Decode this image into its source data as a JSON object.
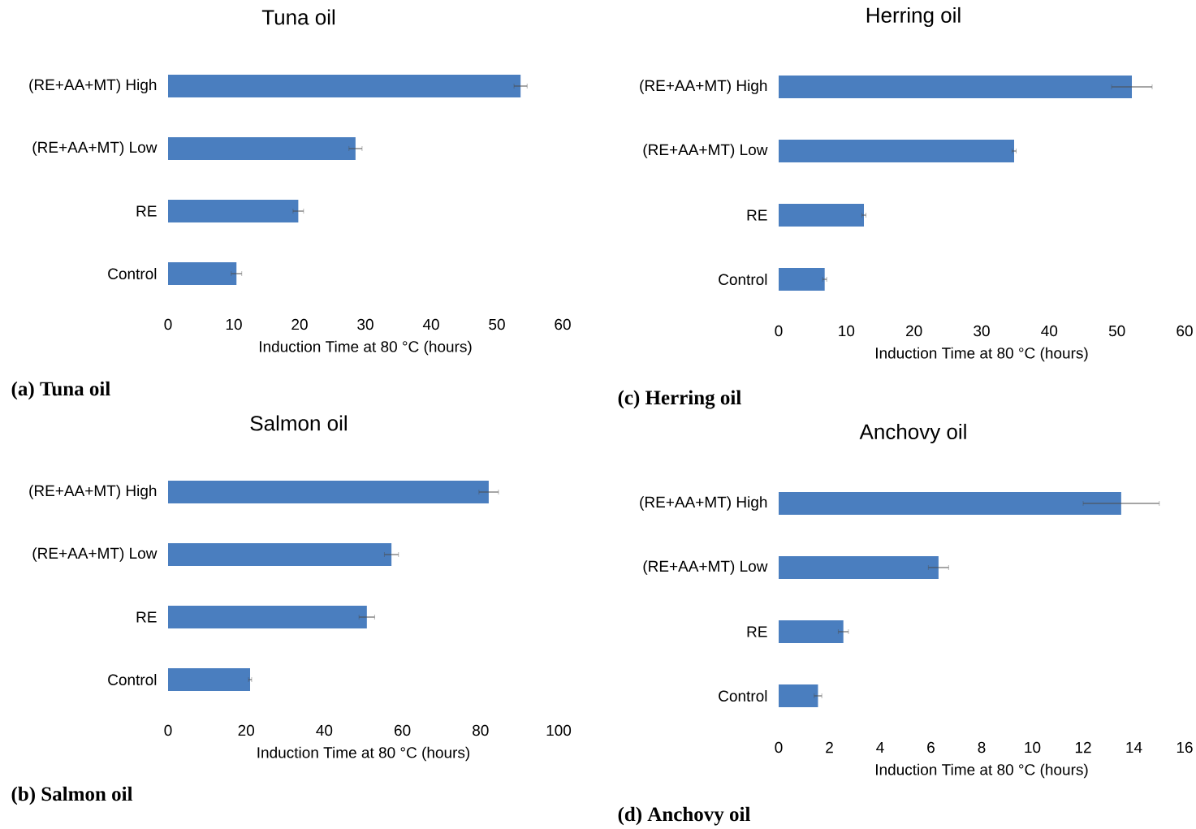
{
  "chart_data": [
    {
      "type": "bar",
      "orientation": "horizontal",
      "title": "Tuna oil",
      "xlabel": "Induction Time at 80 °C (hours)",
      "categories": [
        "(RE+AA+MT) High",
        "(RE+AA+MT) Low",
        "RE",
        "Control"
      ],
      "values": [
        53.6,
        28.5,
        19.8,
        10.4
      ],
      "errors": [
        1.0,
        1.0,
        0.8,
        0.8
      ],
      "color": "#4a7ebf",
      "xlim": [
        0,
        60
      ],
      "xticks": [
        0,
        10,
        20,
        30,
        40,
        50,
        60
      ],
      "annotations": [
        "**(a)** **Tuna oil**"
      ]
    },
    {
      "type": "bar",
      "orientation": "horizontal",
      "title": "Herring oil",
      "xlabel": "Induction Time at 80 °C (hours)",
      "categories": [
        "(RE+AA+MT) High",
        "(RE+AA+MT) Low",
        "RE",
        "Control"
      ],
      "values": [
        52.2,
        34.8,
        12.6,
        6.8
      ],
      "errors": [
        3.0,
        0.3,
        0.3,
        0.3
      ],
      "color": "#4a7ebf",
      "xlim": [
        0,
        60
      ],
      "xticks": [
        0,
        10,
        20,
        30,
        40,
        50,
        60
      ],
      "annotations": [
        "**(c)** **Herring oil**"
      ]
    },
    {
      "type": "bar",
      "orientation": "horizontal",
      "title": "Salmon oil",
      "xlabel": "Induction Time at 80 °C (hours)",
      "categories": [
        "(RE+AA+MT) High",
        "(RE+AA+MT) Low",
        "RE",
        "Control"
      ],
      "values": [
        82.1,
        57.2,
        50.9,
        21.0
      ],
      "errors": [
        2.5,
        1.8,
        2.0,
        0.4
      ],
      "color": "#4a7ebf",
      "xlim": [
        0,
        100
      ],
      "xticks": [
        0,
        20,
        40,
        60,
        80,
        100
      ],
      "annotations": [
        "**(b)** **Salmon oil**"
      ]
    },
    {
      "type": "bar",
      "orientation": "horizontal",
      "title": "Anchovy oil",
      "xlabel": "Induction Time at 80 °C (hours)",
      "categories": [
        "(RE+AA+MT) High",
        "(RE+AA+MT) Low",
        "RE",
        "Control"
      ],
      "values": [
        13.5,
        6.3,
        2.55,
        1.55
      ],
      "errors": [
        1.5,
        0.4,
        0.2,
        0.15
      ],
      "color": "#4a7ebf",
      "xlim": [
        0,
        16
      ],
      "xticks": [
        0,
        2,
        4,
        6,
        8,
        10,
        12,
        14,
        16
      ],
      "annotations": [
        "**(d)** **Anchovy oil**"
      ]
    }
  ]
}
